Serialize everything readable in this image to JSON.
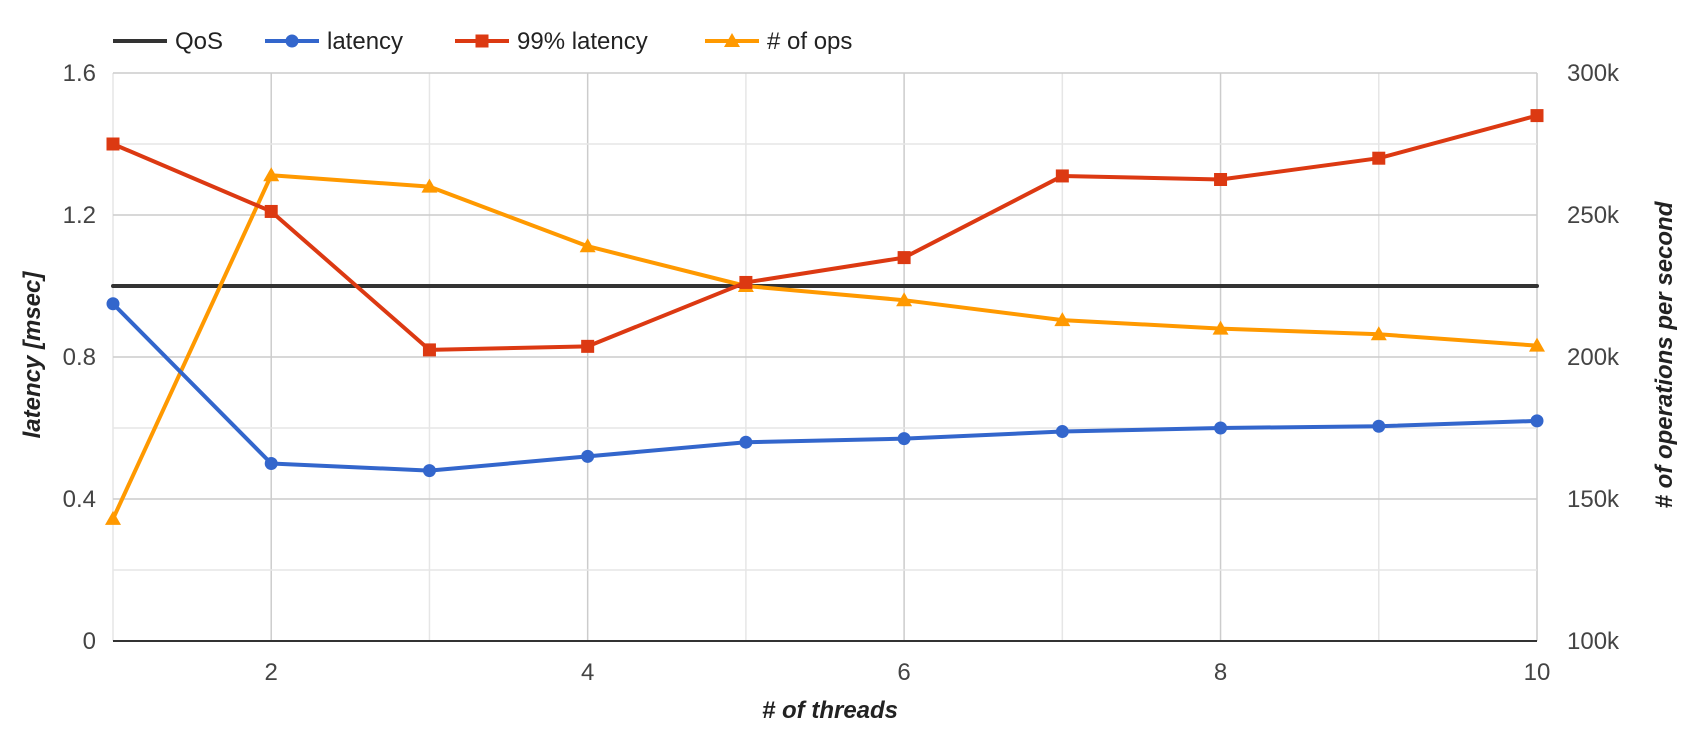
{
  "chart_data": {
    "type": "line",
    "title": "",
    "xlabel": "# of threads",
    "ylabel_left": "latency [msec]",
    "ylabel_right": "# of operations per second",
    "x": [
      1,
      2,
      3,
      4,
      5,
      6,
      7,
      8,
      9,
      10
    ],
    "x_ticks": [
      2,
      4,
      6,
      8,
      10
    ],
    "x_tick_labels": [
      "2",
      "4",
      "6",
      "8",
      "10"
    ],
    "xlim": [
      1,
      10
    ],
    "ylim_left": [
      0,
      1.6
    ],
    "ylim_right": [
      100000,
      300000
    ],
    "left_ticks": [
      0,
      0.4,
      0.8,
      1.2,
      1.6
    ],
    "left_tick_labels": [
      "0",
      "0.4",
      "0.8",
      "1.2",
      "1.6"
    ],
    "right_ticks": [
      100000,
      150000,
      200000,
      250000,
      300000
    ],
    "right_tick_labels": [
      "100k",
      "150k",
      "200k",
      "250k",
      "300k"
    ],
    "grid": true,
    "legend_position": "top-left",
    "series": [
      {
        "name": "QoS",
        "axis": "left",
        "color": "#333333",
        "marker": "none",
        "values": [
          1.0,
          1.0,
          1.0,
          1.0,
          1.0,
          1.0,
          1.0,
          1.0,
          1.0,
          1.0
        ]
      },
      {
        "name": "latency",
        "axis": "left",
        "color": "#3366CC",
        "marker": "circle",
        "values": [
          0.95,
          0.5,
          0.48,
          0.52,
          0.56,
          0.57,
          0.59,
          0.6,
          0.605,
          0.62
        ]
      },
      {
        "name": "99% latency",
        "axis": "left",
        "color": "#DC3912",
        "marker": "square",
        "values": [
          1.4,
          1.21,
          0.82,
          0.83,
          1.01,
          1.08,
          1.31,
          1.3,
          1.36,
          1.48
        ]
      },
      {
        "name": "# of ops",
        "axis": "right",
        "color": "#FF9900",
        "marker": "triangle",
        "values": [
          143000,
          264000,
          260000,
          239000,
          225000,
          220000,
          213000,
          210000,
          208000,
          204000
        ]
      }
    ]
  }
}
